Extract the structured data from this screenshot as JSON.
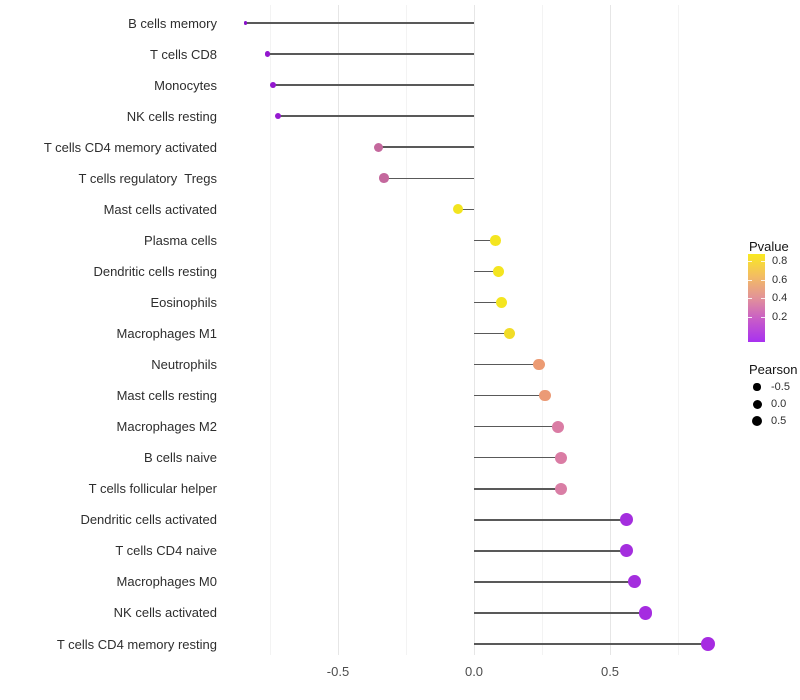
{
  "chart_data": {
    "type": "lollipop",
    "title": "",
    "xlabel": "",
    "ylabel": "",
    "x_ticks": [
      {
        "label": "-0.5",
        "value": -0.5
      },
      {
        "label": "0.0",
        "value": 0.0
      },
      {
        "label": "0.5",
        "value": 0.5
      }
    ],
    "xlim": [
      -0.87,
      0.9
    ],
    "grid_major": [
      -0.5,
      0.0,
      0.5
    ],
    "grid_minor": [
      -0.75,
      -0.25,
      0.25,
      0.75
    ],
    "grid_horizontal": false,
    "segment_color": "#595959",
    "rows": [
      {
        "label": "B cells memory",
        "pearson": -0.84,
        "pvalue_est": 0.05,
        "color": "#8912C9",
        "radius": 1.9
      },
      {
        "label": "T cells CD8",
        "pearson": -0.76,
        "pvalue_est": 0.05,
        "color": "#9317CE",
        "radius": 2.7
      },
      {
        "label": "Monocytes",
        "pearson": -0.74,
        "pvalue_est": 0.05,
        "color": "#9317CE",
        "radius": 2.9
      },
      {
        "label": "NK cells resting",
        "pearson": -0.72,
        "pvalue_est": 0.08,
        "color": "#961AD1",
        "radius": 3.2
      },
      {
        "label": "T cells CD4 memory activated",
        "pearson": -0.35,
        "pvalue_est": 0.45,
        "color": "#C4689D",
        "radius": 4.6
      },
      {
        "label": "T cells regulatory  Tregs",
        "pearson": -0.33,
        "pvalue_est": 0.45,
        "color": "#C4689D",
        "radius": 4.8
      },
      {
        "label": "Mast cells activated",
        "pearson": -0.06,
        "pvalue_est": 0.8,
        "color": "#F2E41F",
        "radius": 5.1
      },
      {
        "label": "Plasma cells",
        "pearson": 0.08,
        "pvalue_est": 0.8,
        "color": "#F4E520",
        "radius": 5.3
      },
      {
        "label": "Dendritic cells resting",
        "pearson": 0.09,
        "pvalue_est": 0.8,
        "color": "#F4E520",
        "radius": 5.4
      },
      {
        "label": "Eosinophils",
        "pearson": 0.1,
        "pvalue_est": 0.8,
        "color": "#F4E520",
        "radius": 5.5
      },
      {
        "label": "Macrophages M1",
        "pearson": 0.13,
        "pvalue_est": 0.75,
        "color": "#F1DC27",
        "radius": 5.6
      },
      {
        "label": "Neutrophils",
        "pearson": 0.24,
        "pvalue_est": 0.6,
        "color": "#EC9B73",
        "radius": 5.8
      },
      {
        "label": "Mast cells resting",
        "pearson": 0.26,
        "pvalue_est": 0.6,
        "color": "#EB9A76",
        "radius": 5.9
      },
      {
        "label": "Macrophages M2",
        "pearson": 0.31,
        "pvalue_est": 0.45,
        "color": "#DA7CA4",
        "radius": 6.1
      },
      {
        "label": "B cells naive",
        "pearson": 0.32,
        "pvalue_est": 0.45,
        "color": "#DA7CA4",
        "radius": 6.1
      },
      {
        "label": "T cells follicular helper",
        "pearson": 0.32,
        "pvalue_est": 0.45,
        "color": "#D97EA5",
        "radius": 6.2
      },
      {
        "label": "Dendritic cells activated",
        "pearson": 0.56,
        "pvalue_est": 0.05,
        "color": "#A42EDE",
        "radius": 6.5
      },
      {
        "label": "T cells CD4 naive",
        "pearson": 0.56,
        "pvalue_est": 0.05,
        "color": "#A42EDE",
        "radius": 6.5
      },
      {
        "label": "Macrophages M0",
        "pearson": 0.59,
        "pvalue_est": 0.05,
        "color": "#A42EDE",
        "radius": 6.6
      },
      {
        "label": "NK cells activated",
        "pearson": 0.63,
        "pvalue_est": 0.05,
        "color": "#A52CE0",
        "radius": 6.7
      },
      {
        "label": "T cells CD4 memory resting",
        "pearson": 0.86,
        "pvalue_est": 0.05,
        "color": "#A62BE1",
        "radius": 7.0
      }
    ],
    "legend": {
      "pvalue": {
        "title": "Pvalue",
        "tick_labels": [
          "0.8",
          "0.6",
          "0.4",
          "0.2"
        ],
        "gradient": [
          "#F9E921",
          "#F3BD62",
          "#E29299",
          "#C75BC9",
          "#A831F0"
        ]
      },
      "pearson": {
        "title": "Pearson",
        "items": [
          {
            "label": "-0.5",
            "radius": 3.6
          },
          {
            "label": "0.0",
            "radius": 4.5
          },
          {
            "label": "0.5",
            "radius": 5.2
          }
        ]
      }
    }
  }
}
